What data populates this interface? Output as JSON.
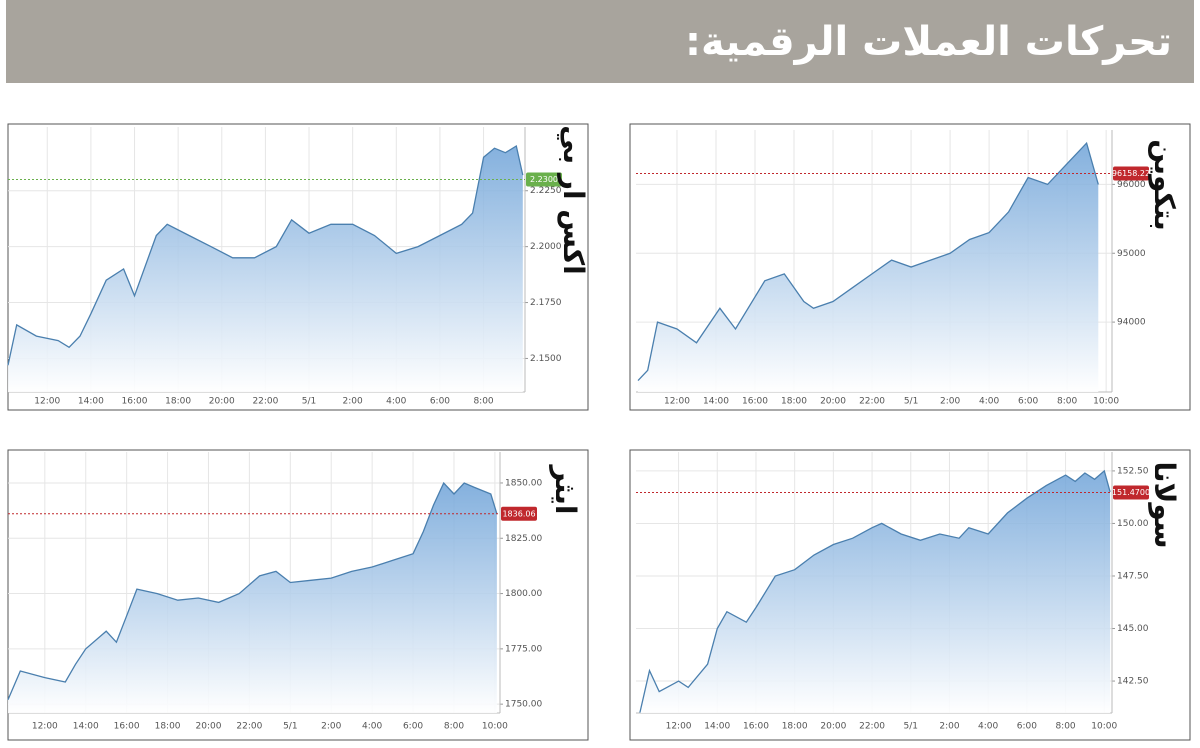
{
  "title": "تحركات العملات الرقمية:",
  "chart_data": [
    {
      "type": "area",
      "title": "بتكوين",
      "color": "#4a7fae",
      "grid": true,
      "x": [
        10,
        10.5,
        11,
        12,
        13,
        14.2,
        15,
        16.5,
        17.5,
        18.5,
        19,
        20,
        21,
        22,
        23,
        24,
        25,
        26,
        27,
        28,
        29,
        30,
        31,
        32,
        33,
        33.6
      ],
      "values": [
        93150,
        93300,
        94000,
        93900,
        93700,
        94200,
        93900,
        94600,
        94700,
        94300,
        94200,
        94300,
        94500,
        94700,
        94900,
        94800,
        94900,
        95000,
        95200,
        95300,
        95600,
        96100,
        96000,
        96300,
        96600,
        96000
      ],
      "xlim": [
        9.9,
        34.3
      ],
      "xticks": [
        {
          "value": 12,
          "label": "12:00"
        },
        {
          "value": 14,
          "label": "14:00"
        },
        {
          "value": 16,
          "label": "16:00"
        },
        {
          "value": 18,
          "label": "18:00"
        },
        {
          "value": 20,
          "label": "20:00"
        },
        {
          "value": 22,
          "label": "22:00"
        },
        {
          "value": 24,
          "label": "5/1"
        },
        {
          "value": 26,
          "label": "2:00"
        },
        {
          "value": 28,
          "label": "4:00"
        },
        {
          "value": 30,
          "label": "6:00"
        },
        {
          "value": 32,
          "label": "8:00"
        },
        {
          "value": 34,
          "label": "10:00"
        }
      ],
      "ylim": [
        92985,
        96790
      ],
      "yticks": [
        94000,
        95000,
        96000
      ],
      "last_price": 96158.22,
      "last_price_color": "#c0282d"
    },
    {
      "type": "area",
      "title": "اكس ار بي",
      "color": "#4a7fae",
      "grid": true,
      "x": [
        10.2,
        10.6,
        11.5,
        12.5,
        13,
        13.5,
        14,
        14.7,
        15.5,
        16,
        17,
        17.5,
        18.5,
        19.5,
        20.5,
        21.5,
        22.5,
        23.2,
        24,
        25,
        26,
        27,
        28,
        29,
        30,
        31,
        31.5,
        32,
        32.5,
        33,
        33.5,
        33.8
      ],
      "values": [
        2.147,
        2.165,
        2.16,
        2.158,
        2.155,
        2.16,
        2.17,
        2.185,
        2.19,
        2.178,
        2.205,
        2.21,
        2.205,
        2.2,
        2.195,
        2.195,
        2.2,
        2.212,
        2.206,
        2.21,
        2.21,
        2.205,
        2.197,
        2.2,
        2.205,
        2.21,
        2.215,
        2.24,
        2.244,
        2.242,
        2.245,
        2.232
      ],
      "xlim": [
        10.2,
        33.9
      ],
      "xticks": [
        {
          "value": 12,
          "label": "12:00"
        },
        {
          "value": 14,
          "label": "14:00"
        },
        {
          "value": 16,
          "label": "16:00"
        },
        {
          "value": 18,
          "label": "18:00"
        },
        {
          "value": 20,
          "label": "20:00"
        },
        {
          "value": 22,
          "label": "22:00"
        },
        {
          "value": 24,
          "label": "5/1"
        },
        {
          "value": 26,
          "label": "2:00"
        },
        {
          "value": 28,
          "label": "4:00"
        },
        {
          "value": 30,
          "label": "6:00"
        },
        {
          "value": 32,
          "label": "8:00"
        }
      ],
      "ylim": [
        2.135,
        2.2535
      ],
      "yticks": [
        {
          "value": 2.15,
          "label": "2.1500"
        },
        {
          "value": 2.175,
          "label": "2.1750"
        },
        {
          "value": 2.2,
          "label": "2.2000"
        },
        {
          "value": 2.225,
          "label": "2.2250"
        }
      ],
      "last_price": {
        "value": 2.23,
        "label": "2.2300"
      },
      "last_price_color": "#6ab04c"
    },
    {
      "type": "area",
      "title": "ايثر",
      "color": "#4a7fae",
      "grid": true,
      "x": [
        10.2,
        10.8,
        12,
        13,
        13.5,
        14,
        15,
        15.5,
        16,
        16.5,
        17.5,
        18.5,
        19.5,
        20.5,
        21.5,
        22.5,
        23.3,
        24,
        25,
        26,
        27,
        28,
        29,
        30,
        30.5,
        31,
        31.5,
        32,
        32.5,
        33,
        33.8,
        34.1
      ],
      "values": [
        1752,
        1765,
        1762,
        1760,
        1768,
        1775,
        1783,
        1778,
        1790,
        1802,
        1800,
        1797,
        1798,
        1796,
        1800,
        1808,
        1810,
        1805,
        1806,
        1807,
        1810,
        1812,
        1815,
        1818,
        1828,
        1840,
        1850,
        1845,
        1850,
        1848,
        1845,
        1836
      ],
      "xlim": [
        10.2,
        34.25
      ],
      "xticks": [
        {
          "value": 12,
          "label": "12:00"
        },
        {
          "value": 14,
          "label": "14:00"
        },
        {
          "value": 16,
          "label": "16:00"
        },
        {
          "value": 18,
          "label": "18:00"
        },
        {
          "value": 20,
          "label": "20:00"
        },
        {
          "value": 22,
          "label": "22:00"
        },
        {
          "value": 24,
          "label": "5/1"
        },
        {
          "value": 26,
          "label": "2:00"
        },
        {
          "value": 28,
          "label": "4:00"
        },
        {
          "value": 30,
          "label": "6:00"
        },
        {
          "value": 32,
          "label": "8:00"
        },
        {
          "value": 34,
          "label": "10:00"
        }
      ],
      "ylim": [
        1746,
        1864
      ],
      "yticks": [
        {
          "value": 1750,
          "label": "1750.00"
        },
        {
          "value": 1775,
          "label": "1775.00"
        },
        {
          "value": 1800,
          "label": "1800.00"
        },
        {
          "value": 1825,
          "label": "1825.00"
        },
        {
          "value": 1850,
          "label": "1850.00"
        }
      ],
      "last_price": 1836.06,
      "last_price_color": "#c0282d"
    },
    {
      "type": "area",
      "title": "سولانا",
      "color": "#4a7fae",
      "grid": true,
      "x": [
        10,
        10.5,
        11,
        12,
        12.5,
        13.5,
        14,
        14.5,
        15.5,
        16,
        17,
        18,
        19,
        20,
        21,
        22,
        22.5,
        23.5,
        24.5,
        25.5,
        26.5,
        27,
        28,
        29,
        30,
        31,
        32,
        32.5,
        33,
        33.5,
        34,
        34.3
      ],
      "values": [
        141,
        143,
        142,
        142.5,
        142.2,
        143.3,
        145,
        145.8,
        145.3,
        146,
        147.5,
        147.8,
        148.5,
        149,
        149.3,
        149.8,
        150,
        149.5,
        149.2,
        149.5,
        149.3,
        149.8,
        149.5,
        150.5,
        151.2,
        151.8,
        152.3,
        152,
        152.4,
        152.1,
        152.5,
        151.5
      ],
      "xlim": [
        9.8,
        34.4
      ],
      "xticks": [
        {
          "value": 12,
          "label": "12:00"
        },
        {
          "value": 14,
          "label": "14:00"
        },
        {
          "value": 16,
          "label": "16:00"
        },
        {
          "value": 18,
          "label": "18:00"
        },
        {
          "value": 20,
          "label": "20:00"
        },
        {
          "value": 22,
          "label": "22:00"
        },
        {
          "value": 24,
          "label": "5/1"
        },
        {
          "value": 26,
          "label": "2:00"
        },
        {
          "value": 28,
          "label": "4:00"
        },
        {
          "value": 30,
          "label": "6:00"
        },
        {
          "value": 32,
          "label": "8:00"
        },
        {
          "value": 34,
          "label": "10:00"
        }
      ],
      "ylim": [
        140.98,
        153.4
      ],
      "yticks": [
        {
          "value": 142.5,
          "label": "142.50"
        },
        {
          "value": 145,
          "label": "145.00"
        },
        {
          "value": 147.5,
          "label": "147.50"
        },
        {
          "value": 150,
          "label": "150.00"
        },
        {
          "value": 152.5,
          "label": "152.50"
        }
      ],
      "last_price": {
        "value": 151.47,
        "label": "151.4700"
      },
      "last_price_color": "#c0282d"
    }
  ]
}
